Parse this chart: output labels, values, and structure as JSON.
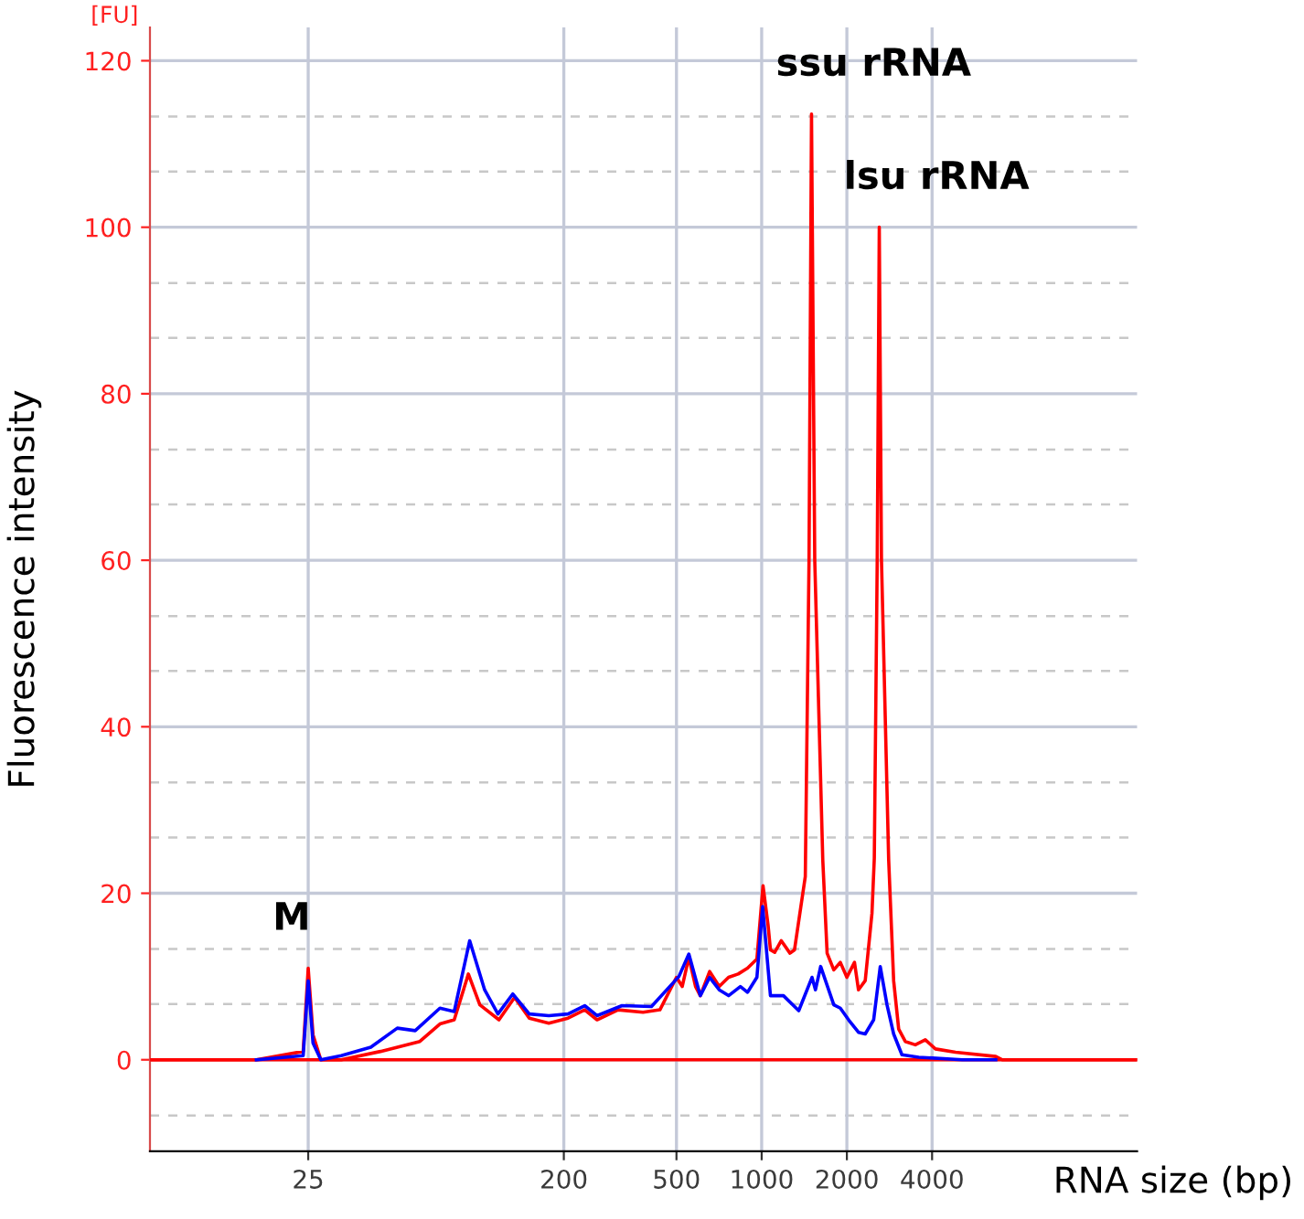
{
  "chart_data": {
    "type": "line",
    "xlabel": "RNA size (bp)",
    "ylabel": "Fluorescence intensity",
    "log": "x",
    "xlim": [
      6.9,
      21200
    ],
    "xticks": [
      25,
      200,
      500,
      1000,
      2000,
      4000
    ],
    "ylim": [
      -11,
      124
    ],
    "yticks": [
      {
        "value": -6.7,
        "label": null
      },
      0,
      {
        "value": 6.7,
        "label": null
      },
      {
        "value": 13.3,
        "label": null
      },
      20,
      {
        "value": 26.7,
        "label": null
      },
      {
        "value": 33.3,
        "label": null
      },
      40,
      {
        "value": 46.7,
        "label": null
      },
      {
        "value": 53.3,
        "label": null
      },
      60,
      {
        "value": 66.7,
        "label": null
      },
      {
        "value": 73.3,
        "label": null
      },
      80,
      {
        "value": 86.7,
        "label": null
      },
      {
        "value": 93.3,
        "label": null
      },
      100,
      {
        "value": 106.7,
        "label": null
      },
      {
        "value": 113.3,
        "label": null
      },
      120
    ],
    "grid": true,
    "marker": "none",
    "line_style": "solid",
    "ref_lines": [
      {
        "axis": "y",
        "value": 0,
        "color": "#ff0000"
      }
    ],
    "annotations": [
      "[FU]",
      {
        "text": "M",
        "x": 25,
        "y": 11
      },
      {
        "text": "ssu rRNA",
        "x": 1500,
        "y": 113.6
      },
      {
        "text": "lsu rRNA",
        "x": 2603,
        "y": 100
      }
    ],
    "series": [
      {
        "color": "#ff0000",
        "x": [
          7,
          16.4,
          24,
          25,
          26,
          27.7,
          32.7,
          45,
          62,
          73,
          82,
          92,
          101,
          118,
          134,
          151,
          177,
          207,
          237,
          262,
          311,
          381,
          437,
          500,
          524,
          553,
          584,
          607,
          655,
          708,
          764,
          826,
          891,
          962,
          1011,
          1054,
          1074,
          1112,
          1173,
          1259,
          1306,
          1426,
          1470,
          1500,
          1540,
          1644,
          1703,
          1798,
          1896,
          2000,
          2128,
          2198,
          2322,
          2453,
          2500,
          2560,
          2603,
          2650,
          2810,
          2926,
          3048,
          3216,
          3490,
          3786,
          4110,
          4842,
          6714,
          7085,
          21000
        ],
        "values": [
          0,
          0,
          1,
          11,
          3,
          0,
          0,
          1,
          2.2,
          4.3,
          4.8,
          10.3,
          6.6,
          4.8,
          7.5,
          5,
          4.4,
          5,
          6,
          4.8,
          6,
          5.7,
          6,
          9.9,
          8.8,
          12.3,
          8.8,
          7.7,
          10.6,
          8.8,
          9.9,
          10.3,
          11,
          12.1,
          20.9,
          16.1,
          13.2,
          12.9,
          14.3,
          12.8,
          13.2,
          22,
          60,
          113.6,
          60,
          24,
          12.8,
          10.8,
          11.7,
          9.9,
          11.7,
          8.4,
          9.5,
          17.6,
          24.2,
          60,
          100,
          60,
          24,
          9.5,
          3.7,
          2.2,
          1.8,
          2.4,
          1.3,
          0.9,
          0.4,
          0,
          0
        ]
      },
      {
        "color": "#0000ff",
        "x": [
          16.4,
          24,
          25,
          26,
          27.7,
          32.7,
          41.6,
          51.6,
          59.7,
          73,
          82,
          93,
          105,
          117,
          132,
          151,
          177,
          207,
          237,
          262,
          321,
          408,
          510,
          553,
          607,
          655,
          708,
          764,
          841,
          891,
          962,
          1008,
          1074,
          1194,
          1352,
          1506,
          1549,
          1616,
          1798,
          1896,
          2028,
          2198,
          2322,
          2487,
          2624,
          2772,
          2926,
          3130,
          3587,
          5112,
          6714
        ],
        "values": [
          0,
          0.5,
          9.5,
          2,
          0,
          0.5,
          1.5,
          3.8,
          3.5,
          6.2,
          5.8,
          14.3,
          8.4,
          5.5,
          7.9,
          5.5,
          5.3,
          5.5,
          6.5,
          5.3,
          6.5,
          6.4,
          10,
          12.7,
          7.7,
          9.9,
          8.4,
          7.7,
          8.8,
          8.1,
          9.9,
          18.4,
          7.7,
          7.7,
          5.9,
          9.9,
          8.4,
          11.2,
          6.6,
          6.2,
          4.8,
          3.3,
          3.1,
          4.8,
          11.2,
          6.6,
          3.1,
          0.6,
          0.3,
          0,
          0
        ]
      }
    ]
  }
}
